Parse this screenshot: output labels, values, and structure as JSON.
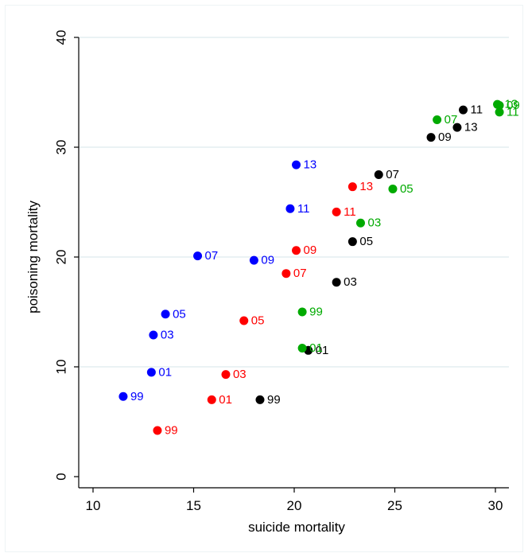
{
  "chart_data": {
    "type": "scatter",
    "title": "",
    "xlabel": "suicide mortality",
    "ylabel": "poisoning mortality",
    "xlim": [
      9.5,
      31
    ],
    "ylim": [
      -1,
      41
    ],
    "xticks": [
      10,
      15,
      20,
      25,
      30
    ],
    "yticks": [
      0,
      10,
      20,
      30,
      40
    ],
    "grid": "horizontal",
    "legend": "none",
    "series": [
      {
        "color": "#0000ff",
        "points": [
          {
            "x": 11.5,
            "y": 7.3,
            "label": "99"
          },
          {
            "x": 12.9,
            "y": 9.5,
            "label": "01"
          },
          {
            "x": 13.0,
            "y": 12.9,
            "label": "03"
          },
          {
            "x": 13.6,
            "y": 14.8,
            "label": "05"
          },
          {
            "x": 15.2,
            "y": 20.1,
            "label": "07"
          },
          {
            "x": 18.0,
            "y": 19.7,
            "label": "09"
          },
          {
            "x": 19.8,
            "y": 24.4,
            "label": "11"
          },
          {
            "x": 20.1,
            "y": 28.4,
            "label": "13"
          }
        ]
      },
      {
        "color": "#ff0000",
        "points": [
          {
            "x": 13.2,
            "y": 4.2,
            "label": "99"
          },
          {
            "x": 15.9,
            "y": 7.0,
            "label": "01"
          },
          {
            "x": 16.6,
            "y": 9.3,
            "label": "03"
          },
          {
            "x": 17.5,
            "y": 14.2,
            "label": "05"
          },
          {
            "x": 19.6,
            "y": 18.5,
            "label": "07"
          },
          {
            "x": 20.1,
            "y": 20.6,
            "label": "09"
          },
          {
            "x": 22.1,
            "y": 24.1,
            "label": "11"
          },
          {
            "x": 22.9,
            "y": 26.4,
            "label": "13"
          }
        ]
      },
      {
        "color": "#000000",
        "points": [
          {
            "x": 18.3,
            "y": 7.0,
            "label": "99"
          },
          {
            "x": 20.7,
            "y": 11.5,
            "label": "01"
          },
          {
            "x": 22.1,
            "y": 17.7,
            "label": "03"
          },
          {
            "x": 22.9,
            "y": 21.4,
            "label": "05"
          },
          {
            "x": 24.2,
            "y": 27.5,
            "label": "07"
          },
          {
            "x": 26.8,
            "y": 30.9,
            "label": "09"
          },
          {
            "x": 28.4,
            "y": 33.4,
            "label": "11"
          },
          {
            "x": 28.1,
            "y": 31.8,
            "label": "13"
          }
        ]
      },
      {
        "color": "#00aa00",
        "points": [
          {
            "x": 20.4,
            "y": 15.0,
            "label": "99"
          },
          {
            "x": 20.4,
            "y": 11.7,
            "label": "01"
          },
          {
            "x": 23.3,
            "y": 23.1,
            "label": "03"
          },
          {
            "x": 24.9,
            "y": 26.2,
            "label": "05"
          },
          {
            "x": 27.1,
            "y": 32.5,
            "label": "07"
          },
          {
            "x": 30.2,
            "y": 33.8,
            "label": "09"
          },
          {
            "x": 30.2,
            "y": 33.2,
            "label": "11"
          },
          {
            "x": 30.1,
            "y": 33.9,
            "label": "13"
          }
        ]
      }
    ]
  }
}
